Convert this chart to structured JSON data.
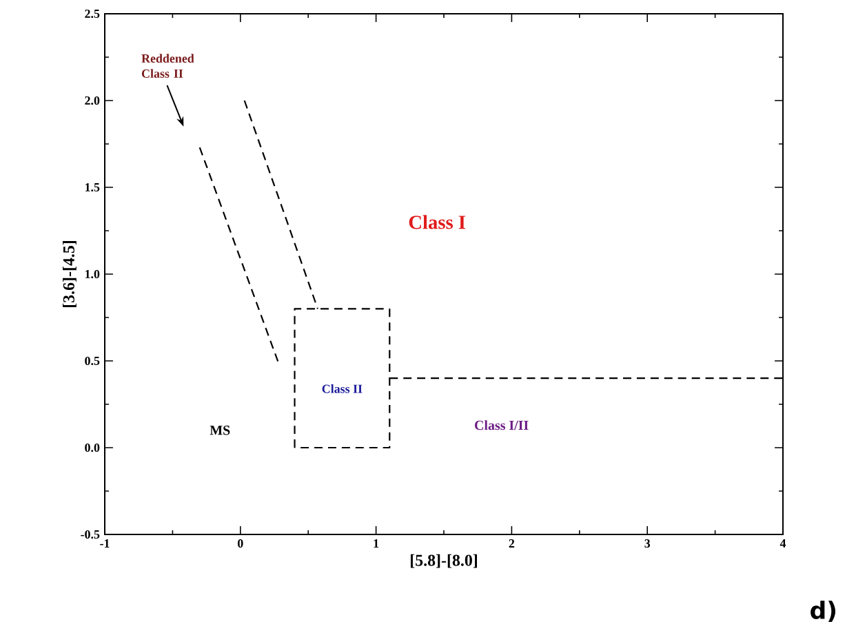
{
  "chart_data": {
    "type": "line",
    "xlabel": "[5.8]-[8.0]",
    "ylabel": "[3.6]-[4.5]",
    "xlim": [
      -1,
      4
    ],
    "xticks": [
      -1,
      0,
      1,
      2,
      3,
      4
    ],
    "ylim": [
      -0.5,
      2.5
    ],
    "yticks": [
      -0.5,
      {
        "value": 0,
        "label": "0.0"
      },
      0.5,
      {
        "value": 1,
        "label": "1.0"
      },
      1.5,
      {
        "value": 2,
        "label": "2.0"
      },
      2.5
    ],
    "line_style": "dashed",
    "marker": "none",
    "series": [
      {
        "color": "#000000",
        "x": [
          0.4,
          0.4,
          1.1
        ],
        "values": [
          0,
          0.8,
          0.8
        ]
      },
      {
        "color": "#000000",
        "x": [
          1.1,
          1.1,
          0.4
        ],
        "values": [
          0.8,
          0,
          0
        ]
      },
      {
        "color": "#000000",
        "x": [
          1.1,
          4
        ],
        "values": [
          0.4,
          0.4
        ]
      },
      {
        "color": "#000000",
        "x": [
          0.03,
          0.57
        ],
        "values": [
          2.0,
          0.8
        ]
      },
      {
        "color": "#000000",
        "x": [
          -0.3,
          0.28
        ],
        "values": [
          1.73,
          0.49
        ]
      }
    ],
    "annotations": [
      "Reddened Class II",
      "Class I",
      "Class II",
      "Class I/II",
      "MS",
      "d)"
    ]
  }
}
